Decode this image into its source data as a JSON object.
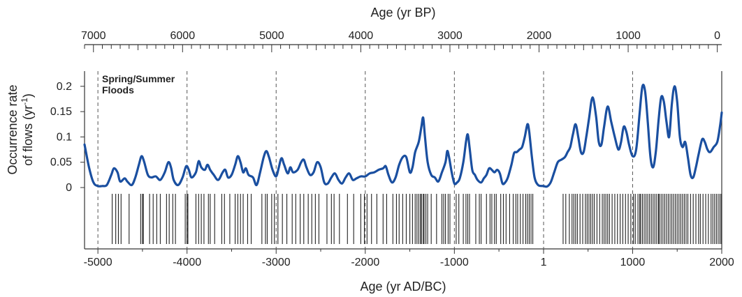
{
  "chart_data": {
    "type": "line",
    "top_axis_title": "Age (yr BP)",
    "bottom_axis_title": "Age (yr AD/BC)",
    "ylabel_line1": "Occurrence rate",
    "ylabel_line2_prefix": "of flows (yr",
    "ylabel_line2_sup": "-1",
    "ylabel_line2_suffix": ")",
    "annotation_line1": "Spring/Summer",
    "annotation_line2": "Floods",
    "xlim": [
      -5150,
      2000
    ],
    "ylim": [
      0,
      0.23
    ],
    "bottom_ticks": [
      {
        "value": -5000,
        "label": "-5000"
      },
      {
        "value": -4000,
        "label": "-4000"
      },
      {
        "value": -3000,
        "label": "-3000"
      },
      {
        "value": -2000,
        "label": "-2000"
      },
      {
        "value": -1000,
        "label": "-1000"
      },
      {
        "value": 1,
        "label": "1"
      },
      {
        "value": 1000,
        "label": "1000"
      },
      {
        "value": 2000,
        "label": "2000"
      }
    ],
    "top_ticks": [
      {
        "value": 7000,
        "label": "7000"
      },
      {
        "value": 6000,
        "label": "6000"
      },
      {
        "value": 5000,
        "label": "5000"
      },
      {
        "value": 4000,
        "label": "4000"
      },
      {
        "value": 3000,
        "label": "3000"
      },
      {
        "value": 2000,
        "label": "2000"
      },
      {
        "value": 1000,
        "label": "1000"
      },
      {
        "value": 0,
        "label": "0"
      }
    ],
    "y_ticks": [
      {
        "value": 0,
        "label": "0"
      },
      {
        "value": 0.05,
        "label": "0.05"
      },
      {
        "value": 0.1,
        "label": "0.1"
      },
      {
        "value": 0.15,
        "label": "0.15"
      },
      {
        "value": 0.2,
        "label": "0.2"
      }
    ],
    "dashed_lines": [
      -5000,
      -4000,
      -3000,
      -2000,
      -1000,
      1,
      1000
    ],
    "series": [
      {
        "color": "#1a4fa0",
        "points": [
          [
            -5150,
            0.085
          ],
          [
            -5100,
            0.04
          ],
          [
            -5050,
            0.01
          ],
          [
            -5000,
            0.003
          ],
          [
            -4950,
            0.003
          ],
          [
            -4900,
            0.005
          ],
          [
            -4850,
            0.025
          ],
          [
            -4820,
            0.038
          ],
          [
            -4780,
            0.03
          ],
          [
            -4750,
            0.012
          ],
          [
            -4700,
            0.018
          ],
          [
            -4670,
            0.012
          ],
          [
            -4620,
            0.005
          ],
          [
            -4580,
            0.02
          ],
          [
            -4540,
            0.045
          ],
          [
            -4510,
            0.062
          ],
          [
            -4480,
            0.05
          ],
          [
            -4440,
            0.025
          ],
          [
            -4400,
            0.02
          ],
          [
            -4350,
            0.022
          ],
          [
            -4300,
            0.015
          ],
          [
            -4250,
            0.03
          ],
          [
            -4210,
            0.05
          ],
          [
            -4180,
            0.04
          ],
          [
            -4150,
            0.015
          ],
          [
            -4100,
            0.005
          ],
          [
            -4050,
            0.02
          ],
          [
            -4010,
            0.042
          ],
          [
            -3980,
            0.035
          ],
          [
            -3950,
            0.02
          ],
          [
            -3900,
            0.03
          ],
          [
            -3870,
            0.052
          ],
          [
            -3840,
            0.04
          ],
          [
            -3800,
            0.035
          ],
          [
            -3770,
            0.045
          ],
          [
            -3740,
            0.035
          ],
          [
            -3700,
            0.025
          ],
          [
            -3650,
            0.015
          ],
          [
            -3600,
            0.03
          ],
          [
            -3570,
            0.035
          ],
          [
            -3540,
            0.02
          ],
          [
            -3500,
            0.025
          ],
          [
            -3460,
            0.045
          ],
          [
            -3430,
            0.062
          ],
          [
            -3400,
            0.05
          ],
          [
            -3370,
            0.03
          ],
          [
            -3340,
            0.038
          ],
          [
            -3310,
            0.025
          ],
          [
            -3260,
            0.02
          ],
          [
            -3220,
            0.005
          ],
          [
            -3180,
            0.03
          ],
          [
            -3140,
            0.06
          ],
          [
            -3110,
            0.072
          ],
          [
            -3080,
            0.06
          ],
          [
            -3040,
            0.035
          ],
          [
            -3000,
            0.022
          ],
          [
            -2970,
            0.04
          ],
          [
            -2940,
            0.058
          ],
          [
            -2910,
            0.045
          ],
          [
            -2870,
            0.028
          ],
          [
            -2840,
            0.04
          ],
          [
            -2810,
            0.03
          ],
          [
            -2760,
            0.035
          ],
          [
            -2720,
            0.05
          ],
          [
            -2690,
            0.055
          ],
          [
            -2660,
            0.04
          ],
          [
            -2620,
            0.025
          ],
          [
            -2580,
            0.03
          ],
          [
            -2540,
            0.05
          ],
          [
            -2500,
            0.04
          ],
          [
            -2460,
            0.01
          ],
          [
            -2420,
            0.008
          ],
          [
            -2380,
            0.02
          ],
          [
            -2340,
            0.028
          ],
          [
            -2300,
            0.015
          ],
          [
            -2260,
            0.008
          ],
          [
            -2220,
            0.02
          ],
          [
            -2180,
            0.028
          ],
          [
            -2140,
            0.015
          ],
          [
            -2100,
            0.018
          ],
          [
            -2050,
            0.022
          ],
          [
            -2000,
            0.022
          ],
          [
            -1950,
            0.028
          ],
          [
            -1900,
            0.03
          ],
          [
            -1850,
            0.035
          ],
          [
            -1800,
            0.038
          ],
          [
            -1770,
            0.042
          ],
          [
            -1740,
            0.025
          ],
          [
            -1700,
            0.01
          ],
          [
            -1660,
            0.02
          ],
          [
            -1620,
            0.045
          ],
          [
            -1580,
            0.06
          ],
          [
            -1540,
            0.06
          ],
          [
            -1500,
            0.03
          ],
          [
            -1470,
            0.04
          ],
          [
            -1440,
            0.07
          ],
          [
            -1400,
            0.09
          ],
          [
            -1370,
            0.12
          ],
          [
            -1350,
            0.138
          ],
          [
            -1330,
            0.1
          ],
          [
            -1300,
            0.05
          ],
          [
            -1260,
            0.025
          ],
          [
            -1220,
            0.02
          ],
          [
            -1180,
            0.012
          ],
          [
            -1140,
            0.03
          ],
          [
            -1100,
            0.05
          ],
          [
            -1080,
            0.072
          ],
          [
            -1060,
            0.06
          ],
          [
            -1030,
            0.03
          ],
          [
            -1000,
            0.008
          ],
          [
            -970,
            0.01
          ],
          [
            -940,
            0.018
          ],
          [
            -900,
            0.05
          ],
          [
            -870,
            0.09
          ],
          [
            -850,
            0.105
          ],
          [
            -830,
            0.08
          ],
          [
            -800,
            0.035
          ],
          [
            -770,
            0.025
          ],
          [
            -740,
            0.015
          ],
          [
            -700,
            0.01
          ],
          [
            -670,
            0.018
          ],
          [
            -640,
            0.025
          ],
          [
            -610,
            0.038
          ],
          [
            -580,
            0.035
          ],
          [
            -550,
            0.03
          ],
          [
            -520,
            0.035
          ],
          [
            -490,
            0.028
          ],
          [
            -460,
            0.008
          ],
          [
            -430,
            0.01
          ],
          [
            -400,
            0.02
          ],
          [
            -360,
            0.045
          ],
          [
            -330,
            0.068
          ],
          [
            -300,
            0.07
          ],
          [
            -270,
            0.075
          ],
          [
            -240,
            0.08
          ],
          [
            -210,
            0.1
          ],
          [
            -180,
            0.125
          ],
          [
            -160,
            0.11
          ],
          [
            -130,
            0.06
          ],
          [
            -100,
            0.02
          ],
          [
            -60,
            0.005
          ],
          [
            0,
            0.003
          ],
          [
            40,
            0.002
          ],
          [
            80,
            0.01
          ],
          [
            120,
            0.03
          ],
          [
            160,
            0.05
          ],
          [
            200,
            0.055
          ],
          [
            240,
            0.06
          ],
          [
            270,
            0.07
          ],
          [
            300,
            0.08
          ],
          [
            330,
            0.105
          ],
          [
            360,
            0.125
          ],
          [
            390,
            0.1
          ],
          [
            420,
            0.07
          ],
          [
            450,
            0.07
          ],
          [
            480,
            0.1
          ],
          [
            510,
            0.135
          ],
          [
            550,
            0.178
          ],
          [
            590,
            0.14
          ],
          [
            620,
            0.09
          ],
          [
            650,
            0.085
          ],
          [
            680,
            0.12
          ],
          [
            720,
            0.16
          ],
          [
            760,
            0.13
          ],
          [
            800,
            0.1
          ],
          [
            840,
            0.075
          ],
          [
            870,
            0.09
          ],
          [
            900,
            0.12
          ],
          [
            930,
            0.11
          ],
          [
            960,
            0.085
          ],
          [
            1000,
            0.062
          ],
          [
            1040,
            0.075
          ],
          [
            1080,
            0.15
          ],
          [
            1110,
            0.2
          ],
          [
            1140,
            0.19
          ],
          [
            1170,
            0.13
          ],
          [
            1200,
            0.06
          ],
          [
            1230,
            0.04
          ],
          [
            1260,
            0.07
          ],
          [
            1290,
            0.13
          ],
          [
            1320,
            0.178
          ],
          [
            1350,
            0.17
          ],
          [
            1380,
            0.13
          ],
          [
            1410,
            0.1
          ],
          [
            1440,
            0.165
          ],
          [
            1470,
            0.2
          ],
          [
            1500,
            0.17
          ],
          [
            1530,
            0.1
          ],
          [
            1560,
            0.08
          ],
          [
            1590,
            0.09
          ],
          [
            1620,
            0.06
          ],
          [
            1650,
            0.025
          ],
          [
            1680,
            0.02
          ],
          [
            1710,
            0.04
          ],
          [
            1740,
            0.065
          ],
          [
            1780,
            0.095
          ],
          [
            1810,
            0.09
          ],
          [
            1840,
            0.075
          ],
          [
            1870,
            0.07
          ],
          [
            1910,
            0.08
          ],
          [
            1950,
            0.09
          ],
          [
            1980,
            0.12
          ],
          [
            2000,
            0.148
          ]
        ]
      }
    ],
    "events": [
      -4840,
      -4800,
      -4770,
      -4740,
      -4650,
      -4520,
      -4500,
      -4490,
      -4420,
      -4380,
      -4340,
      -4300,
      -4230,
      -4200,
      -4160,
      -4130,
      -4020,
      -4000,
      -3990,
      -3900,
      -3870,
      -3840,
      -3810,
      -3760,
      -3740,
      -3690,
      -3610,
      -3580,
      -3520,
      -3460,
      -3430,
      -3400,
      -3370,
      -3320,
      -3280,
      -3160,
      -3120,
      -3100,
      -3050,
      -3020,
      -2980,
      -2930,
      -2880,
      -2820,
      -2780,
      -2730,
      -2690,
      -2640,
      -2600,
      -2560,
      -2520,
      -2430,
      -2380,
      -2350,
      -2290,
      -2200,
      -2130,
      -2050,
      -2010,
      -1980,
      -1930,
      -1870,
      -1800,
      -1760,
      -1690,
      -1650,
      -1620,
      -1580,
      -1540,
      -1500,
      -1470,
      -1440,
      -1420,
      -1400,
      -1380,
      -1370,
      -1350,
      -1340,
      -1320,
      -1300,
      -1260,
      -1200,
      -1140,
      -1120,
      -1100,
      -1070,
      -1050,
      -980,
      -950,
      -900,
      -870,
      -850,
      -830,
      -760,
      -720,
      -700,
      -640,
      -600,
      -580,
      -550,
      -530,
      -480,
      -450,
      -420,
      -380,
      -340,
      -310,
      -290,
      -260,
      -230,
      -200,
      -180,
      -160,
      -140,
      -120,
      220,
      250,
      290,
      320,
      340,
      360,
      380,
      410,
      440,
      470,
      490,
      510,
      530,
      550,
      570,
      600,
      630,
      660,
      680,
      700,
      720,
      740,
      770,
      800,
      830,
      860,
      890,
      920,
      950,
      980,
      1010,
      1030,
      1060,
      1080,
      1090,
      1110,
      1130,
      1150,
      1170,
      1190,
      1210,
      1230,
      1250,
      1270,
      1290,
      1300,
      1320,
      1340,
      1360,
      1380,
      1400,
      1420,
      1440,
      1460,
      1480,
      1500,
      1520,
      1540,
      1560,
      1580,
      1600,
      1620,
      1650,
      1680,
      1710,
      1740,
      1760,
      1790,
      1820,
      1850,
      1880,
      1900,
      1920,
      1940,
      1960,
      1980,
      1995
    ]
  }
}
